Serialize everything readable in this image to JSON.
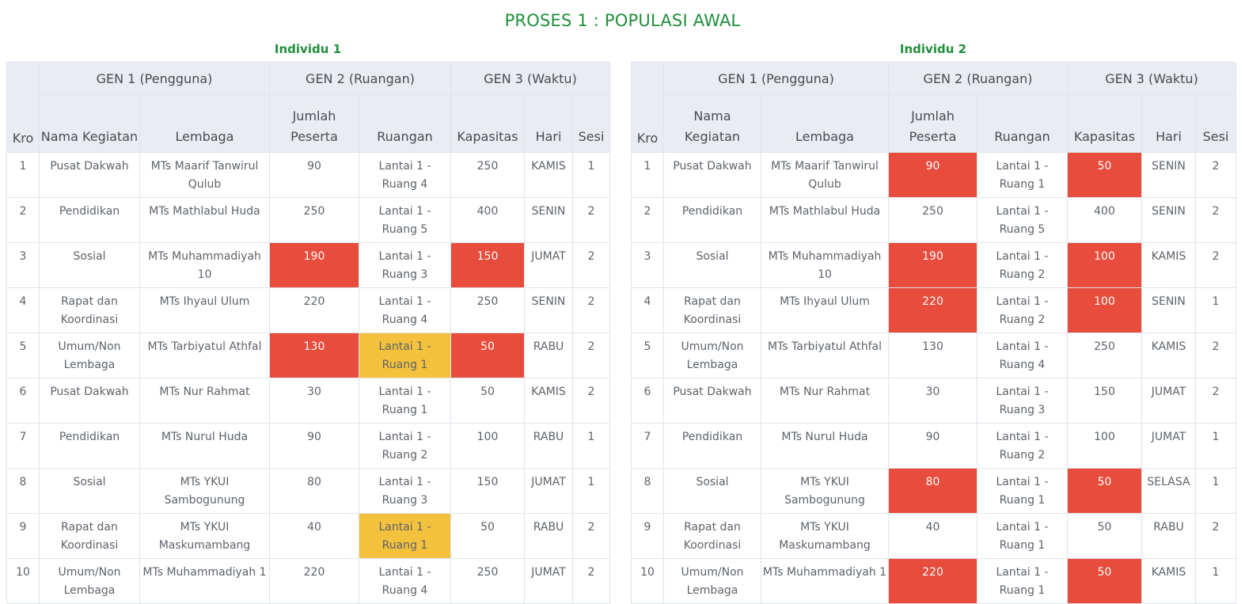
{
  "page_title": "PROSES 1 : POPULASI AWAL",
  "headers": {
    "kro": "Kro",
    "gen1": "GEN 1 (Pengguna)",
    "gen2": "GEN 2 (Ruangan)",
    "gen3": "GEN 3 (Waktu)",
    "nama": "Nama Kegiatan",
    "lembaga": "Lembaga",
    "jumlah": "Jumlah Peserta",
    "ruangan": "Ruangan",
    "kapasitas": "Kapasitas",
    "hari": "Hari",
    "sesi": "Sesi"
  },
  "highlight_colors": {
    "red": "#e74c3c",
    "yellow": "#f4c13d"
  },
  "individuals": [
    {
      "title": "Individu 1",
      "rows": [
        {
          "kro": "1",
          "nama": "Pusat Dakwah",
          "lembaga": "MTs Maarif Tanwirul Qulub",
          "jumlah": "90",
          "ruangan": "Lantai 1 - Ruang 4",
          "kapasitas": "250",
          "hari": "KAMIS",
          "sesi": "1",
          "jumlah_hl": "",
          "ruangan_hl": "",
          "kapasitas_hl": ""
        },
        {
          "kro": "2",
          "nama": "Pendidikan",
          "lembaga": "MTs Mathlabul Huda",
          "jumlah": "250",
          "ruangan": "Lantai 1 - Ruang 5",
          "kapasitas": "400",
          "hari": "SENIN",
          "sesi": "2",
          "jumlah_hl": "",
          "ruangan_hl": "",
          "kapasitas_hl": ""
        },
        {
          "kro": "3",
          "nama": "Sosial",
          "lembaga": "MTs Muhammadiyah 10",
          "jumlah": "190",
          "ruangan": "Lantai 1 - Ruang 3",
          "kapasitas": "150",
          "hari": "JUMAT",
          "sesi": "2",
          "jumlah_hl": "red",
          "ruangan_hl": "",
          "kapasitas_hl": "red"
        },
        {
          "kro": "4",
          "nama": "Rapat dan Koordinasi",
          "lembaga": "MTs Ihyaul Ulum",
          "jumlah": "220",
          "ruangan": "Lantai 1 - Ruang 4",
          "kapasitas": "250",
          "hari": "SENIN",
          "sesi": "2",
          "jumlah_hl": "",
          "ruangan_hl": "",
          "kapasitas_hl": ""
        },
        {
          "kro": "5",
          "nama": "Umum/Non Lembaga",
          "lembaga": "MTs Tarbiyatul Athfal",
          "jumlah": "130",
          "ruangan": "Lantai 1 - Ruang 1",
          "kapasitas": "50",
          "hari": "RABU",
          "sesi": "2",
          "jumlah_hl": "red",
          "ruangan_hl": "yellow",
          "kapasitas_hl": "red"
        },
        {
          "kro": "6",
          "nama": "Pusat Dakwah",
          "lembaga": "MTs Nur Rahmat",
          "jumlah": "30",
          "ruangan": "Lantai 1 - Ruang 1",
          "kapasitas": "50",
          "hari": "KAMIS",
          "sesi": "2",
          "jumlah_hl": "",
          "ruangan_hl": "",
          "kapasitas_hl": ""
        },
        {
          "kro": "7",
          "nama": "Pendidikan",
          "lembaga": "MTs Nurul Huda",
          "jumlah": "90",
          "ruangan": "Lantai 1 - Ruang 2",
          "kapasitas": "100",
          "hari": "RABU",
          "sesi": "1",
          "jumlah_hl": "",
          "ruangan_hl": "",
          "kapasitas_hl": ""
        },
        {
          "kro": "8",
          "nama": "Sosial",
          "lembaga": "MTs YKUI Sambogunung",
          "jumlah": "80",
          "ruangan": "Lantai 1 - Ruang 3",
          "kapasitas": "150",
          "hari": "JUMAT",
          "sesi": "1",
          "jumlah_hl": "",
          "ruangan_hl": "",
          "kapasitas_hl": ""
        },
        {
          "kro": "9",
          "nama": "Rapat dan Koordinasi",
          "lembaga": "MTs YKUI Maskumambang",
          "jumlah": "40",
          "ruangan": "Lantai 1 - Ruang 1",
          "kapasitas": "50",
          "hari": "RABU",
          "sesi": "2",
          "jumlah_hl": "",
          "ruangan_hl": "yellow",
          "kapasitas_hl": ""
        },
        {
          "kro": "10",
          "nama": "Umum/Non Lembaga",
          "lembaga": "MTs Muhammadiyah 1",
          "jumlah": "220",
          "ruangan": "Lantai 1 - Ruang 4",
          "kapasitas": "250",
          "hari": "JUMAT",
          "sesi": "2",
          "jumlah_hl": "",
          "ruangan_hl": "",
          "kapasitas_hl": ""
        }
      ]
    },
    {
      "title": "Individu 2",
      "rows": [
        {
          "kro": "1",
          "nama": "Pusat Dakwah",
          "lembaga": "MTs Maarif Tanwirul Qulub",
          "jumlah": "90",
          "ruangan": "Lantai 1 - Ruang 1",
          "kapasitas": "50",
          "hari": "SENIN",
          "sesi": "2",
          "jumlah_hl": "red",
          "ruangan_hl": "",
          "kapasitas_hl": "red"
        },
        {
          "kro": "2",
          "nama": "Pendidikan",
          "lembaga": "MTs Mathlabul Huda",
          "jumlah": "250",
          "ruangan": "Lantai 1 - Ruang 5",
          "kapasitas": "400",
          "hari": "SENIN",
          "sesi": "2",
          "jumlah_hl": "",
          "ruangan_hl": "",
          "kapasitas_hl": ""
        },
        {
          "kro": "3",
          "nama": "Sosial",
          "lembaga": "MTs Muhammadiyah 10",
          "jumlah": "190",
          "ruangan": "Lantai 1 - Ruang 2",
          "kapasitas": "100",
          "hari": "KAMIS",
          "sesi": "2",
          "jumlah_hl": "red",
          "ruangan_hl": "",
          "kapasitas_hl": "red"
        },
        {
          "kro": "4",
          "nama": "Rapat dan Koordinasi",
          "lembaga": "MTs Ihyaul Ulum",
          "jumlah": "220",
          "ruangan": "Lantai 1 - Ruang 2",
          "kapasitas": "100",
          "hari": "SENIN",
          "sesi": "1",
          "jumlah_hl": "red",
          "ruangan_hl": "",
          "kapasitas_hl": "red"
        },
        {
          "kro": "5",
          "nama": "Umum/Non Lembaga",
          "lembaga": "MTs Tarbiyatul Athfal",
          "jumlah": "130",
          "ruangan": "Lantai 1 - Ruang 4",
          "kapasitas": "250",
          "hari": "KAMIS",
          "sesi": "2",
          "jumlah_hl": "",
          "ruangan_hl": "",
          "kapasitas_hl": ""
        },
        {
          "kro": "6",
          "nama": "Pusat Dakwah",
          "lembaga": "MTs Nur Rahmat",
          "jumlah": "30",
          "ruangan": "Lantai 1 - Ruang 3",
          "kapasitas": "150",
          "hari": "JUMAT",
          "sesi": "2",
          "jumlah_hl": "",
          "ruangan_hl": "",
          "kapasitas_hl": ""
        },
        {
          "kro": "7",
          "nama": "Pendidikan",
          "lembaga": "MTs Nurul Huda",
          "jumlah": "90",
          "ruangan": "Lantai 1 - Ruang 2",
          "kapasitas": "100",
          "hari": "JUMAT",
          "sesi": "1",
          "jumlah_hl": "",
          "ruangan_hl": "",
          "kapasitas_hl": ""
        },
        {
          "kro": "8",
          "nama": "Sosial",
          "lembaga": "MTs YKUI Sambogunung",
          "jumlah": "80",
          "ruangan": "Lantai 1 - Ruang 1",
          "kapasitas": "50",
          "hari": "SELASA",
          "sesi": "1",
          "jumlah_hl": "red",
          "ruangan_hl": "",
          "kapasitas_hl": "red"
        },
        {
          "kro": "9",
          "nama": "Rapat dan Koordinasi",
          "lembaga": "MTs YKUI Maskumambang",
          "jumlah": "40",
          "ruangan": "Lantai 1 - Ruang 1",
          "kapasitas": "50",
          "hari": "RABU",
          "sesi": "2",
          "jumlah_hl": "",
          "ruangan_hl": "",
          "kapasitas_hl": ""
        },
        {
          "kro": "10",
          "nama": "Umum/Non Lembaga",
          "lembaga": "MTs Muhammadiyah 1",
          "jumlah": "220",
          "ruangan": "Lantai 1 - Ruang 1",
          "kapasitas": "50",
          "hari": "KAMIS",
          "sesi": "1",
          "jumlah_hl": "red",
          "ruangan_hl": "",
          "kapasitas_hl": "red"
        }
      ]
    }
  ]
}
